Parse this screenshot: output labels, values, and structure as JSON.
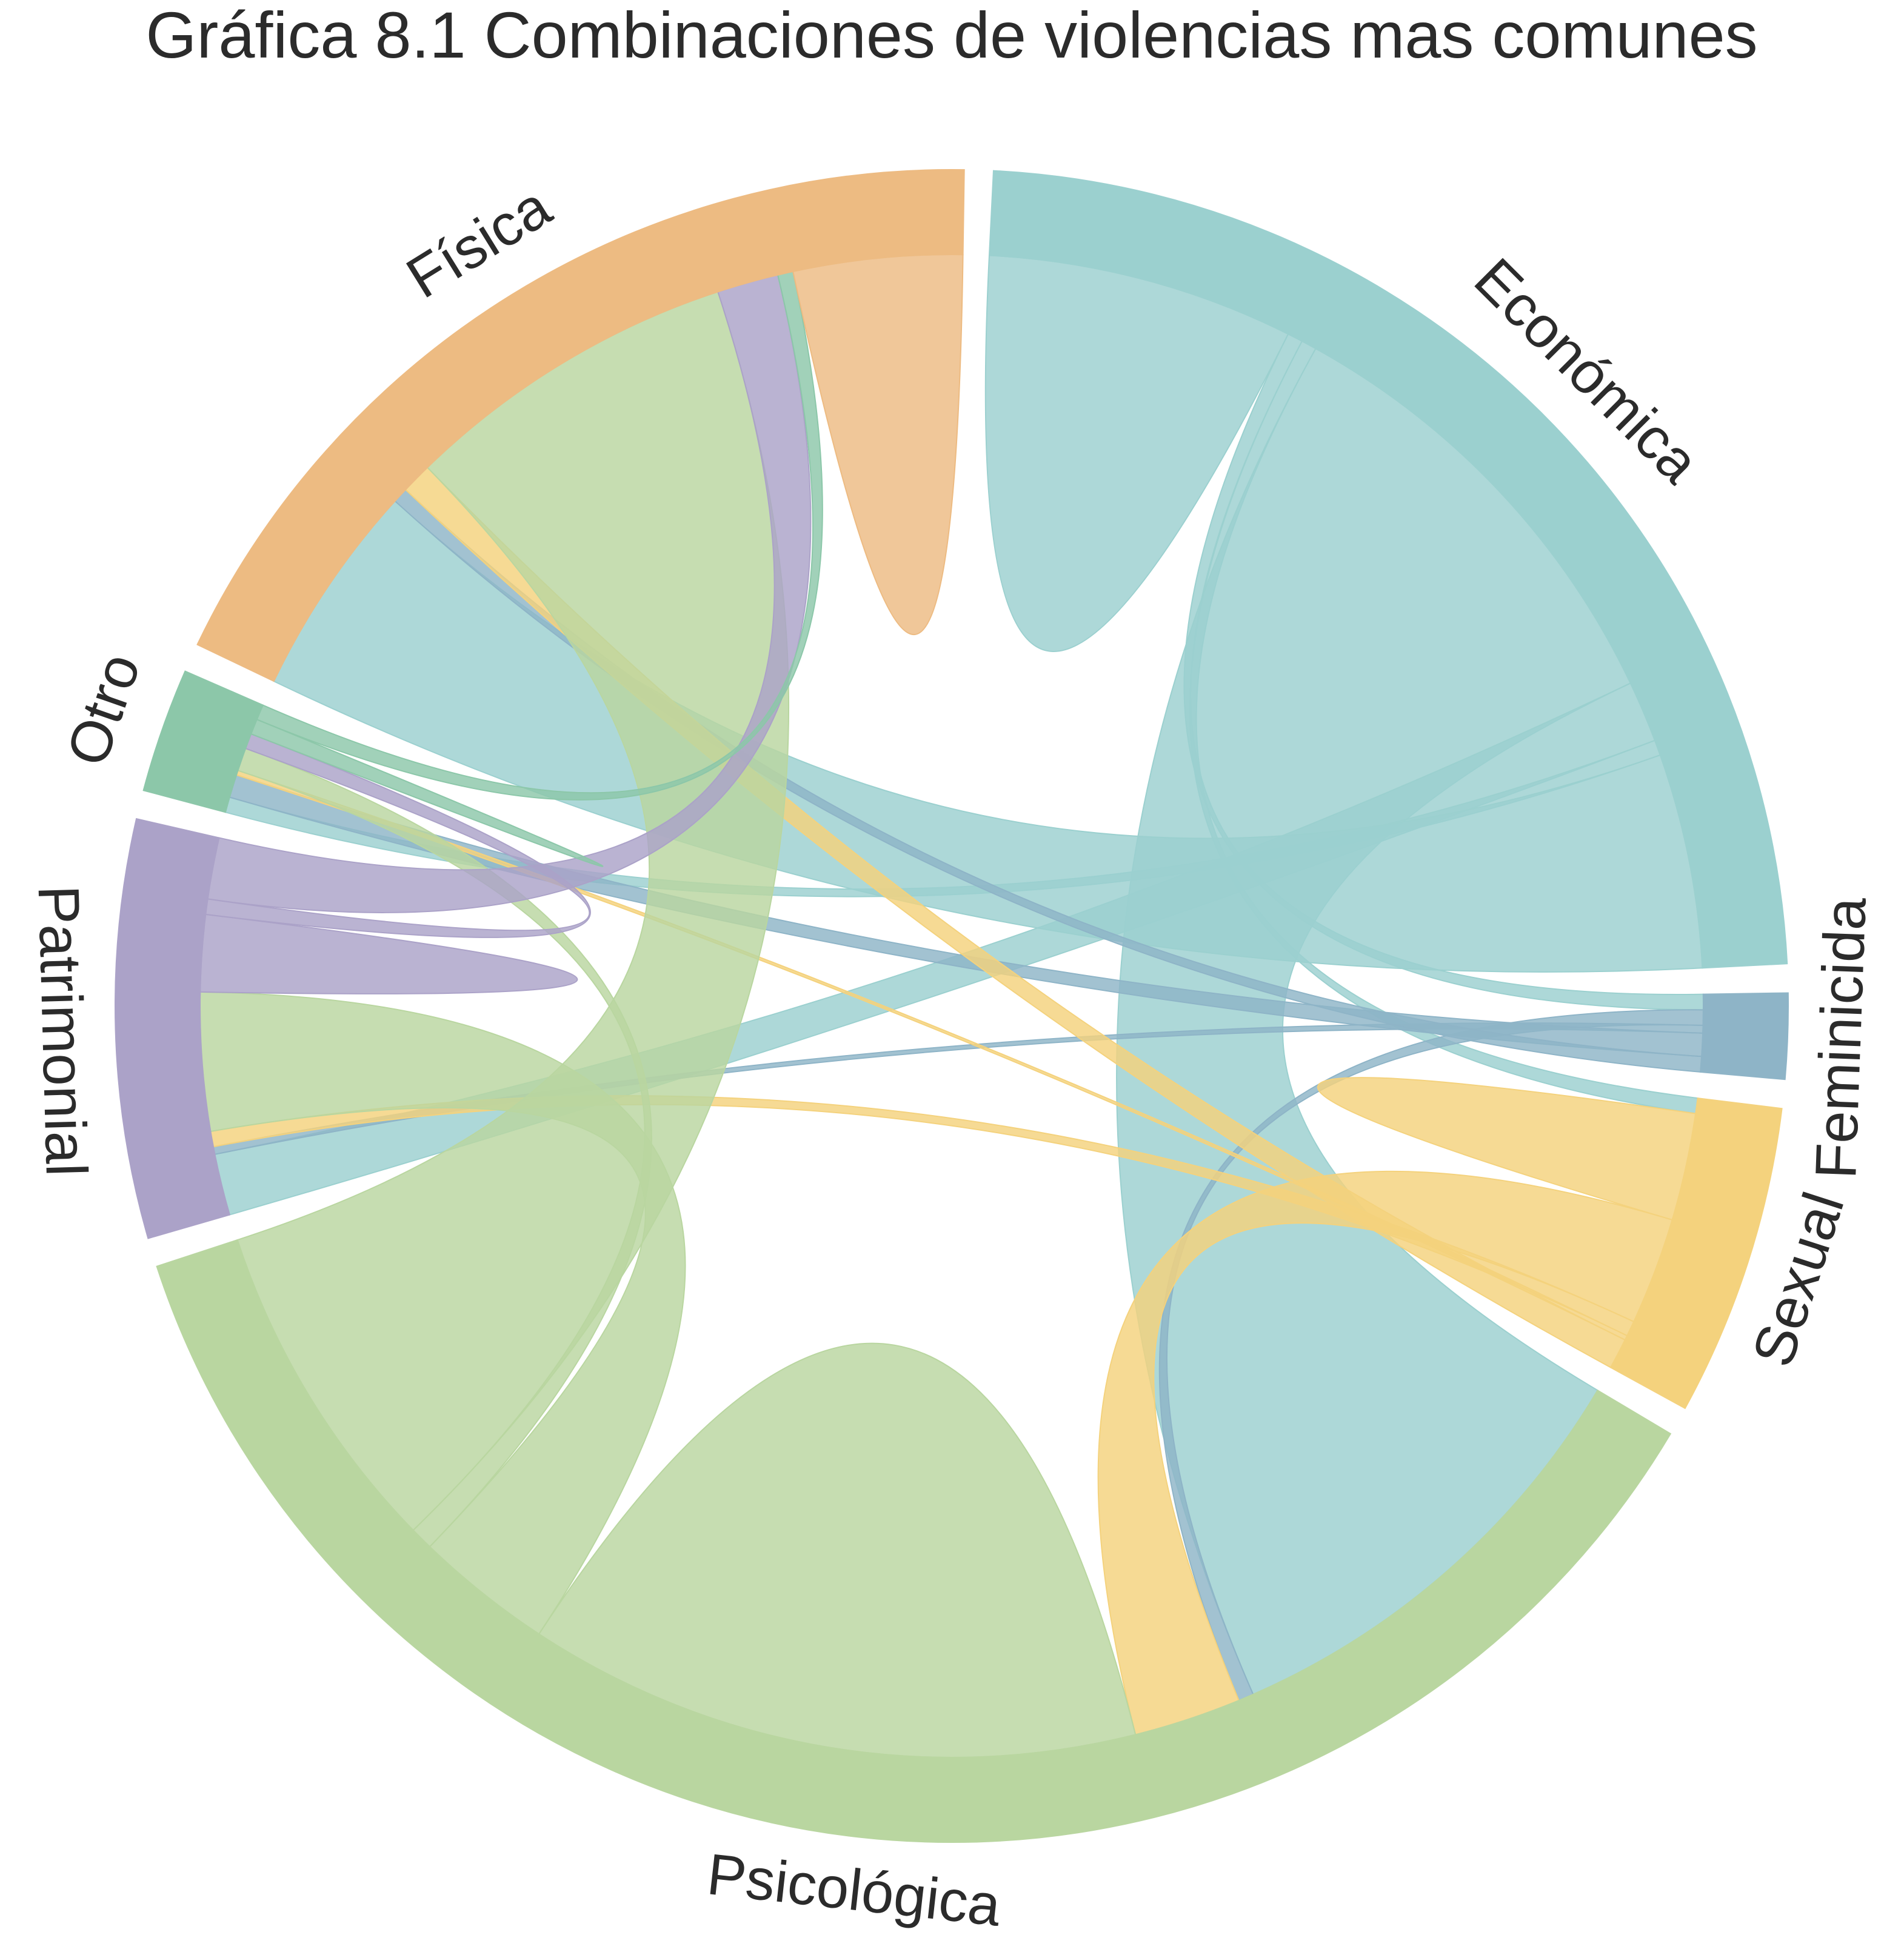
{
  "chart_data": {
    "type": "chord",
    "title": "Gráfica 8.1 Combinaciones de violencias mas comunes",
    "groups": [
      {
        "name": "Económica",
        "color": "#9bd0cf"
      },
      {
        "name": "Feminicida",
        "color": "#8eb4c7"
      },
      {
        "name": "Sexual",
        "color": "#f4d27d"
      },
      {
        "name": "Psicológica",
        "color": "#b9d6a0"
      },
      {
        "name": "Patrimonial",
        "color": "#aba2c8"
      },
      {
        "name": "Otro",
        "color": "#8cc7a9"
      },
      {
        "name": "Física",
        "color": "#edbb82"
      }
    ],
    "matrix": [
      [
        20,
        1,
        1,
        30,
        4,
        1,
        14
      ],
      [
        1,
        0,
        0,
        1,
        0.5,
        1.5,
        1
      ],
      [
        1,
        0,
        7,
        7,
        1,
        0.3,
        2
      ],
      [
        30,
        1,
        7,
        40,
        9,
        1.5,
        22
      ],
      [
        4,
        0.5,
        1,
        9,
        5,
        1,
        4
      ],
      [
        1,
        1.5,
        0.3,
        1.5,
        1,
        1,
        1
      ],
      [
        14,
        1,
        2,
        22,
        4,
        1,
        11
      ]
    ]
  }
}
